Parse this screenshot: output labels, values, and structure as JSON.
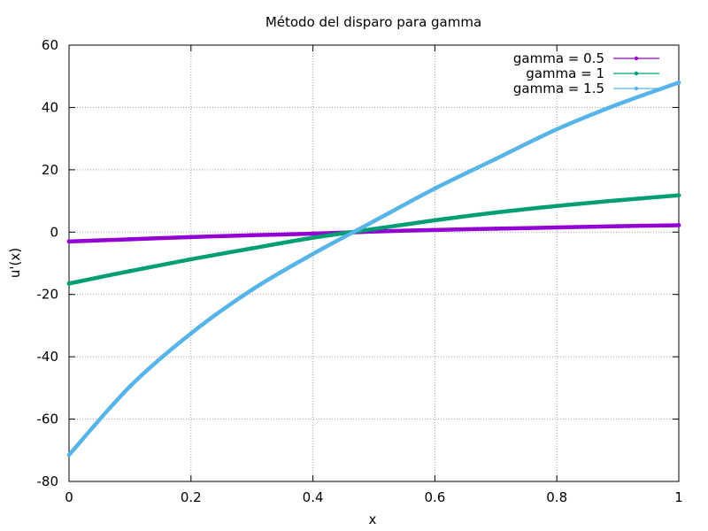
{
  "chart_data": {
    "type": "line",
    "title": "Método del disparo para gamma",
    "xlabel": "x",
    "ylabel": "u'(x)",
    "xlim": [
      0,
      1
    ],
    "ylim": [
      -80,
      60
    ],
    "xticks": [
      0,
      0.2,
      0.4,
      0.6,
      0.8,
      1
    ],
    "xtick_labels": [
      "0",
      "0.2",
      "0.4",
      "0.6",
      "0.8",
      "1"
    ],
    "yticks": [
      -80,
      -60,
      -40,
      -20,
      0,
      20,
      40,
      60
    ],
    "ytick_labels": [
      "-80",
      "-60",
      "-40",
      "-20",
      "0",
      "20",
      "40",
      "60"
    ],
    "grid": true,
    "legend_position": "top-right",
    "x": [
      0,
      0.1,
      0.2,
      0.3,
      0.4,
      0.5,
      0.6,
      0.7,
      0.8,
      0.9,
      1.0
    ],
    "series": [
      {
        "name": "gamma = 0.5",
        "color": "#9400d3",
        "values": [
          -3.0,
          -2.3,
          -1.6,
          -1.0,
          -0.5,
          0.2,
          0.7,
          1.1,
          1.5,
          1.9,
          2.2
        ]
      },
      {
        "name": "gamma = 1",
        "color": "#009e73",
        "values": [
          -16.5,
          -12.5,
          -8.7,
          -5.2,
          -1.8,
          1.0,
          3.8,
          6.3,
          8.4,
          10.2,
          11.8
        ]
      },
      {
        "name": "gamma = 1.5",
        "color": "#56b4e9",
        "values": [
          -71.5,
          -49.5,
          -32.5,
          -18.5,
          -7.0,
          3.5,
          14.0,
          23.5,
          33.0,
          41.0,
          48.0
        ]
      }
    ]
  }
}
